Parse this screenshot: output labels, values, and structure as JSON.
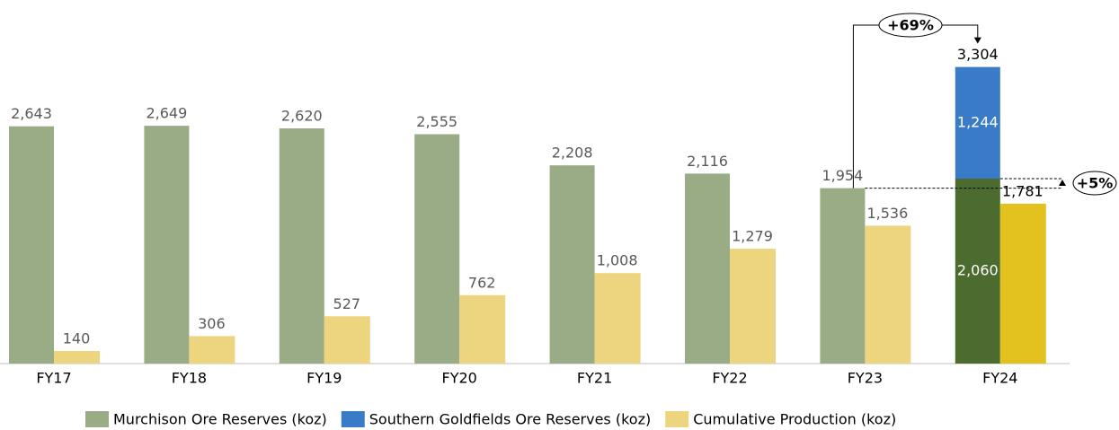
{
  "chart_data": {
    "type": "bar",
    "categories": [
      "FY17",
      "FY18",
      "FY19",
      "FY20",
      "FY21",
      "FY22",
      "FY23",
      "FY24"
    ],
    "series": [
      {
        "name": "Murchison Ore Reserves (koz)",
        "color": "#9aac86",
        "highlight_color": "#4b6b2f",
        "stack": "reserves",
        "values": [
          2643,
          2649,
          2620,
          2555,
          2208,
          2116,
          1954,
          2060
        ],
        "value_labels": [
          "2,643",
          "2,649",
          "2,620",
          "2,555",
          "2,208",
          "2,116",
          "1,954",
          "2,060"
        ]
      },
      {
        "name": "Southern Goldfields Ore Reserves (koz)",
        "color": "#3a7bc8",
        "stack": "reserves",
        "values": [
          null,
          null,
          null,
          null,
          null,
          null,
          null,
          1244
        ],
        "value_labels": [
          null,
          null,
          null,
          null,
          null,
          null,
          null,
          "1,244"
        ]
      },
      {
        "name": "Cumulative Production (koz)",
        "color": "#ecd57e",
        "highlight_color": "#e3c21f",
        "stack": "production",
        "values": [
          140,
          306,
          527,
          762,
          1008,
          1279,
          1536,
          1781
        ],
        "value_labels": [
          "140",
          "306",
          "527",
          "762",
          "1,008",
          "1,279",
          "1,536",
          "1,781"
        ]
      }
    ],
    "totals": [
      null,
      null,
      null,
      null,
      null,
      null,
      null,
      3304
    ],
    "total_labels": [
      null,
      null,
      null,
      null,
      null,
      null,
      null,
      "3,304"
    ],
    "annotations": [
      "+69%",
      "+5%"
    ],
    "ylim": [
      0,
      3500
    ],
    "legend": "bottom"
  }
}
